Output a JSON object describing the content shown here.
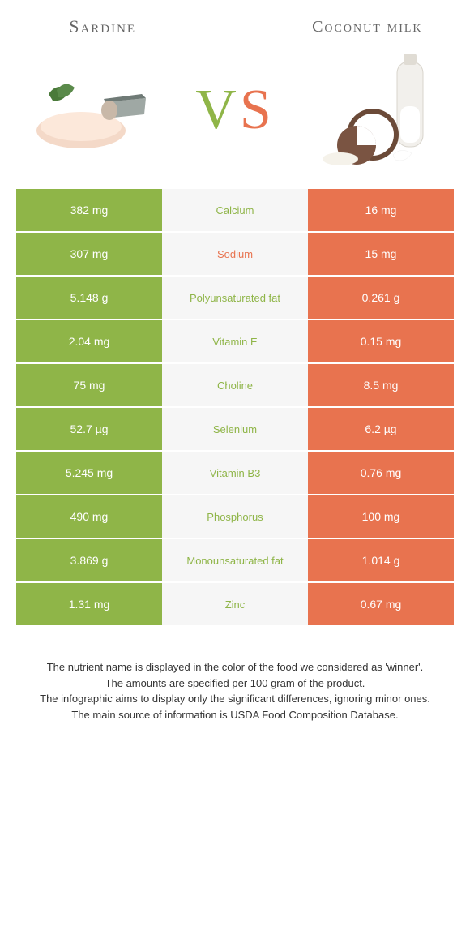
{
  "header": {
    "left_title": "Sardine",
    "right_title": "Coconut milk",
    "vs_v": "V",
    "vs_s": "S"
  },
  "colors": {
    "left_bg": "#8fb548",
    "right_bg": "#e8734f",
    "mid_bg": "#f6f6f6",
    "left_text": "#ffffff",
    "right_text": "#ffffff",
    "nutrient_left_win": "#8fb548",
    "nutrient_right_win": "#e8734f"
  },
  "rows": [
    {
      "left": "382 mg",
      "nutrient": "Calcium",
      "right": "16 mg",
      "winner": "left"
    },
    {
      "left": "307 mg",
      "nutrient": "Sodium",
      "right": "15 mg",
      "winner": "right"
    },
    {
      "left": "5.148 g",
      "nutrient": "Polyunsaturated fat",
      "right": "0.261 g",
      "winner": "left"
    },
    {
      "left": "2.04 mg",
      "nutrient": "Vitamin E",
      "right": "0.15 mg",
      "winner": "left"
    },
    {
      "left": "75 mg",
      "nutrient": "Choline",
      "right": "8.5 mg",
      "winner": "left"
    },
    {
      "left": "52.7 µg",
      "nutrient": "Selenium",
      "right": "6.2 µg",
      "winner": "left"
    },
    {
      "left": "5.245 mg",
      "nutrient": "Vitamin B3",
      "right": "0.76 mg",
      "winner": "left"
    },
    {
      "left": "490 mg",
      "nutrient": "Phosphorus",
      "right": "100 mg",
      "winner": "left"
    },
    {
      "left": "3.869 g",
      "nutrient": "Monounsaturated fat",
      "right": "1.014 g",
      "winner": "left"
    },
    {
      "left": "1.31 mg",
      "nutrient": "Zinc",
      "right": "0.67 mg",
      "winner": "left"
    }
  ],
  "footer": {
    "line1": "The nutrient name is displayed in the color of the food we considered as 'winner'.",
    "line2": "The amounts are specified per 100 gram of the product.",
    "line3": "The infographic aims to display only the significant differences, ignoring minor ones.",
    "line4": "The main source of information is USDA Food Composition Database."
  }
}
